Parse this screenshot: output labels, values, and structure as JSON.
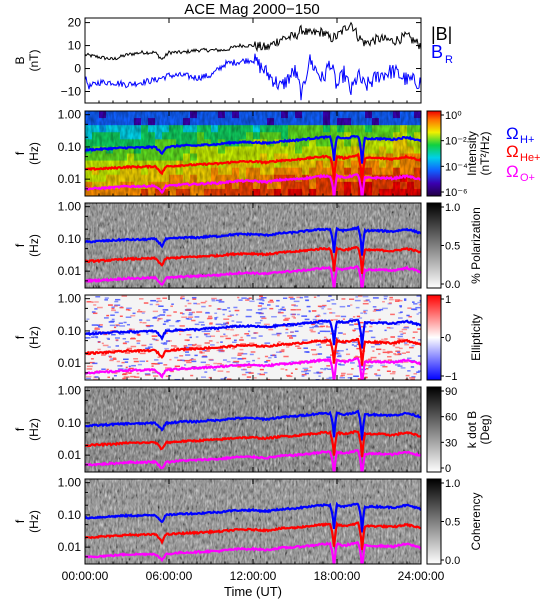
{
  "title": "ACE Mag 2000−150",
  "x_axis": {
    "label": "Time (UT)",
    "ticks": [
      "00:00:00",
      "06:00:00",
      "12:00:00",
      "18:00:00",
      "24:00:00"
    ],
    "range_hours": [
      0,
      24
    ]
  },
  "colors": {
    "b_total": "#000000",
    "b_r": "#0000ff",
    "omega_h": "#0000ff",
    "omega_he": "#ff0000",
    "omega_o": "#ff00ff"
  },
  "legends": {
    "b_total": "|B|",
    "b_r": "B",
    "b_r_sub": "R",
    "omega_symbol": "Ω",
    "omega_h_sub": "H+",
    "omega_he_sub": "He+",
    "omega_o_sub": "O+"
  },
  "chart_data": [
    {
      "type": "line",
      "panel": "magnetic-field",
      "ylabel": "B",
      "yunit": "(nT)",
      "ylim": [
        -15,
        22
      ],
      "yticks": [
        "20",
        "10",
        "0",
        "−10"
      ],
      "series": [
        {
          "name": "|B|",
          "x": [
            0,
            1,
            2,
            3,
            4,
            5,
            5.5,
            6,
            7,
            8,
            9,
            10,
            11,
            12,
            13,
            14,
            15,
            15.5,
            16,
            17,
            17.5,
            18,
            18.5,
            19,
            19.5,
            20,
            21,
            22,
            23,
            24
          ],
          "values": [
            6,
            5,
            4,
            6,
            7,
            7,
            4,
            7,
            7,
            8,
            8,
            8,
            10,
            10,
            9,
            13,
            14,
            17,
            15,
            16,
            13,
            14,
            17,
            20,
            14,
            11,
            13,
            12,
            14,
            10
          ]
        },
        {
          "name": "B_R",
          "x": [
            0,
            0.3,
            1,
            2,
            3,
            4,
            5,
            5.5,
            6,
            7,
            8,
            9,
            10,
            11,
            12,
            13,
            14,
            15,
            15.5,
            16,
            17,
            17.5,
            18,
            18.5,
            19,
            19.5,
            20,
            21,
            22,
            23,
            24
          ],
          "values": [
            -4,
            -8,
            -6,
            -6,
            -7,
            -6,
            -5,
            -4,
            -3,
            -3,
            -4,
            -3,
            2,
            3,
            4,
            -2,
            -8,
            -1,
            -12,
            4,
            -5,
            3,
            -8,
            -2,
            -10,
            -3,
            -8,
            -3,
            -1,
            -5,
            -6
          ]
        }
      ]
    },
    {
      "type": "heatmap",
      "panel": "power-spectrum",
      "ylabel": "f",
      "yunit": "(Hz)",
      "ylim": [
        0.003,
        1.3
      ],
      "yticks": [
        "1.00",
        "0.10",
        "0.01"
      ],
      "colorbar": {
        "label": "Intensity",
        "unit": "(nT²/Hz)",
        "ticks": [
          "10⁰",
          "10⁻²",
          "10⁻⁴",
          "10⁻⁶"
        ]
      }
    },
    {
      "type": "heatmap",
      "panel": "polarization",
      "ylabel": "f",
      "yunit": "(Hz)",
      "ylim": [
        0.003,
        1.3
      ],
      "yticks": [
        "1.00",
        "0.10",
        "0.01"
      ],
      "colorbar": {
        "label": "% Polarization",
        "ticks": [
          "1.0",
          "0.5",
          "0.0"
        ]
      }
    },
    {
      "type": "heatmap",
      "panel": "ellipticity",
      "ylabel": "f",
      "yunit": "(Hz)",
      "ylim": [
        0.003,
        1.3
      ],
      "yticks": [
        "1.00",
        "0.10",
        "0.01"
      ],
      "colorbar": {
        "label": "Ellipticity",
        "ticks": [
          "1",
          "0",
          "−1"
        ]
      }
    },
    {
      "type": "heatmap",
      "panel": "wave-normal-angle",
      "ylabel": "f",
      "yunit": "(Hz)",
      "ylim": [
        0.003,
        1.3
      ],
      "yticks": [
        "1.00",
        "0.10",
        "0.01"
      ],
      "colorbar": {
        "label": "k dot B",
        "unit": "(Deg)",
        "ticks": [
          "90",
          "60",
          "30",
          "0"
        ]
      }
    },
    {
      "type": "heatmap",
      "panel": "coherency",
      "ylabel": "f",
      "yunit": "(Hz)",
      "ylim": [
        0.003,
        1.3
      ],
      "yticks": [
        "1.00",
        "0.10",
        "0.01"
      ],
      "colorbar": {
        "label": "Coherency",
        "ticks": [
          "1.0",
          "0.5",
          "0.0"
        ]
      }
    }
  ],
  "gyrofrequency_lines": {
    "x": [
      0,
      1,
      2,
      3,
      4,
      5,
      5.5,
      5.8,
      6,
      7,
      8,
      9,
      9.5,
      10,
      11,
      12,
      13,
      14,
      15,
      16,
      17,
      17.5,
      17.8,
      18,
      18.5,
      19,
      19.5,
      19.8,
      20,
      21,
      22,
      23,
      24
    ],
    "omega_h_hz": [
      0.08,
      0.085,
      0.09,
      0.095,
      0.095,
      0.1,
      0.06,
      0.1,
      0.1,
      0.11,
      0.11,
      0.12,
      0.12,
      0.13,
      0.14,
      0.14,
      0.13,
      0.15,
      0.16,
      0.18,
      0.2,
      0.2,
      0.03,
      0.2,
      0.18,
      0.2,
      0.22,
      0.02,
      0.18,
      0.18,
      0.17,
      0.2,
      0.15
    ],
    "omega_he_hz": [
      0.02,
      0.021,
      0.022,
      0.024,
      0.024,
      0.025,
      0.015,
      0.025,
      0.025,
      0.027,
      0.028,
      0.03,
      0.03,
      0.032,
      0.035,
      0.035,
      0.033,
      0.038,
      0.04,
      0.045,
      0.05,
      0.05,
      0.008,
      0.05,
      0.045,
      0.05,
      0.055,
      0.006,
      0.045,
      0.045,
      0.042,
      0.05,
      0.038
    ],
    "omega_o_hz": [
      0.005,
      0.0052,
      0.0055,
      0.006,
      0.006,
      0.0062,
      0.0038,
      0.0062,
      0.0062,
      0.0068,
      0.007,
      0.0075,
      0.0075,
      0.008,
      0.0088,
      0.0088,
      0.0082,
      0.0095,
      0.01,
      0.011,
      0.0125,
      0.0125,
      0.002,
      0.0125,
      0.011,
      0.0125,
      0.0138,
      0.0015,
      0.011,
      0.011,
      0.0105,
      0.0125,
      0.0095
    ]
  }
}
